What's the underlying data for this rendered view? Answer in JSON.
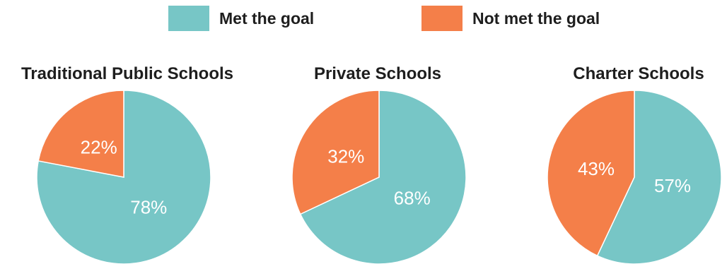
{
  "legend": {
    "met": {
      "label": "Met the goal",
      "color": "#77C6C6"
    },
    "not_met": {
      "label": "Not met the goal",
      "color": "#F47F49"
    }
  },
  "chart_data": [
    {
      "type": "pie",
      "title": "Traditional Public Schools",
      "slices": [
        {
          "name": "Met the goal",
          "value": 78,
          "label": "78%",
          "color": "#77C6C6"
        },
        {
          "name": "Not met the goal",
          "value": 22,
          "label": "22%",
          "color": "#F47F49"
        }
      ]
    },
    {
      "type": "pie",
      "title": "Private Schools",
      "slices": [
        {
          "name": "Met the goal",
          "value": 68,
          "label": "68%",
          "color": "#77C6C6"
        },
        {
          "name": "Not met the goal",
          "value": 32,
          "label": "32%",
          "color": "#F47F49"
        }
      ]
    },
    {
      "type": "pie",
      "title": "Charter Schools",
      "slices": [
        {
          "name": "Met the goal",
          "value": 57,
          "label": "57%",
          "color": "#77C6C6"
        },
        {
          "name": "Not met the goal",
          "value": 43,
          "label": "43%",
          "color": "#F47F49"
        }
      ]
    }
  ]
}
